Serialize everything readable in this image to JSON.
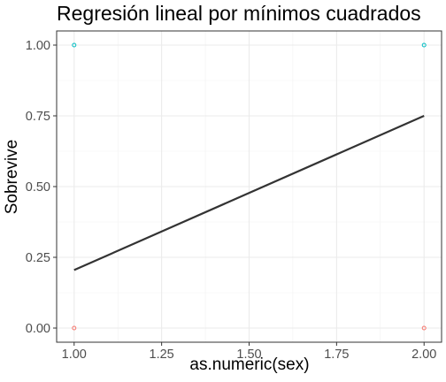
{
  "chart_data": {
    "type": "scatter",
    "title": "Regresión lineal por mínimos cuadrados",
    "xlabel": "as.numeric(sex)",
    "ylabel": "Sobrevive",
    "xlim": [
      0.95,
      2.05
    ],
    "ylim": [
      -0.05,
      1.05
    ],
    "x_ticks": [
      1.0,
      1.25,
      1.5,
      1.75,
      2.0
    ],
    "x_tick_labels": [
      "1.00",
      "1.25",
      "1.50",
      "1.75",
      "2.00"
    ],
    "y_ticks": [
      0,
      0.25,
      0.5,
      0.75,
      1.0
    ],
    "y_tick_labels": [
      "0.00",
      "0.25",
      "0.50",
      "0.75",
      "1.00"
    ],
    "grid": true,
    "legend": "none",
    "points": [
      {
        "x": 1,
        "y": 1,
        "color": "#00BFC4"
      },
      {
        "x": 2,
        "y": 1,
        "color": "#00BFC4"
      },
      {
        "x": 1,
        "y": 0,
        "color": "#F8766D"
      },
      {
        "x": 2,
        "y": 0,
        "color": "#F8766D"
      }
    ],
    "regression_line": {
      "x": [
        1,
        2
      ],
      "y": [
        0.205,
        0.75
      ],
      "color": "#333333"
    }
  }
}
